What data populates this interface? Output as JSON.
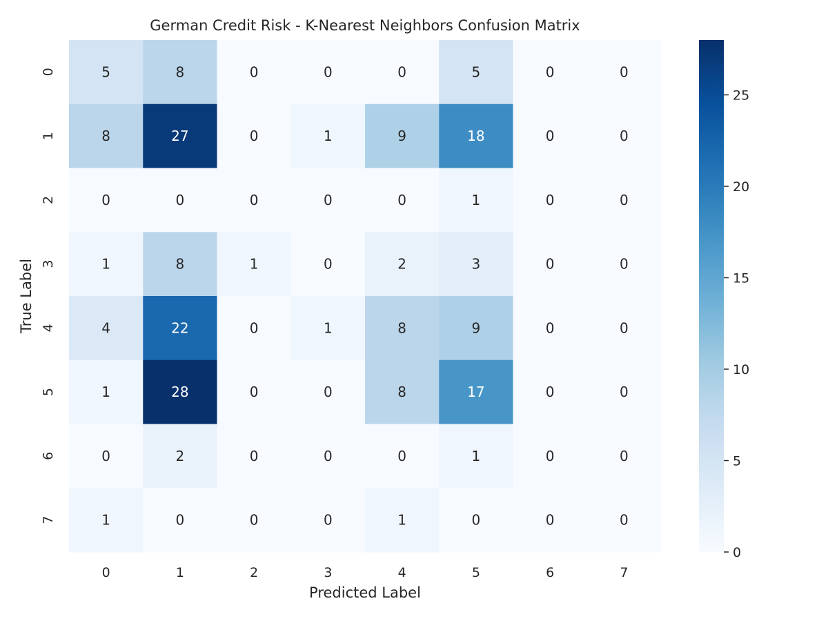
{
  "chart_data": {
    "type": "heatmap",
    "title": "German Credit Risk - K-Nearest Neighbors Confusion Matrix",
    "xlabel": "Predicted Label",
    "ylabel": "True Label",
    "x_categories": [
      "0",
      "1",
      "2",
      "3",
      "4",
      "5",
      "6",
      "7"
    ],
    "y_categories": [
      "0",
      "1",
      "2",
      "3",
      "4",
      "5",
      "6",
      "7"
    ],
    "values": [
      [
        5,
        8,
        0,
        0,
        0,
        5,
        0,
        0
      ],
      [
        8,
        27,
        0,
        1,
        9,
        18,
        0,
        0
      ],
      [
        0,
        0,
        0,
        0,
        0,
        1,
        0,
        0
      ],
      [
        1,
        8,
        1,
        0,
        2,
        3,
        0,
        0
      ],
      [
        4,
        22,
        0,
        1,
        8,
        9,
        0,
        0
      ],
      [
        1,
        28,
        0,
        0,
        8,
        17,
        0,
        0
      ],
      [
        0,
        2,
        0,
        0,
        0,
        1,
        0,
        0
      ],
      [
        1,
        0,
        0,
        0,
        1,
        0,
        0,
        0
      ]
    ],
    "colorbar": {
      "range": [
        0,
        28
      ],
      "ticks": [
        0,
        5,
        10,
        15,
        20,
        25
      ],
      "colormap": "Blues",
      "colors": [
        "#f7fbff",
        "#deebf7",
        "#c6dbef",
        "#9ecae1",
        "#6baed6",
        "#4292c6",
        "#2171b5",
        "#08519c",
        "#08306b"
      ]
    },
    "grid": false
  }
}
